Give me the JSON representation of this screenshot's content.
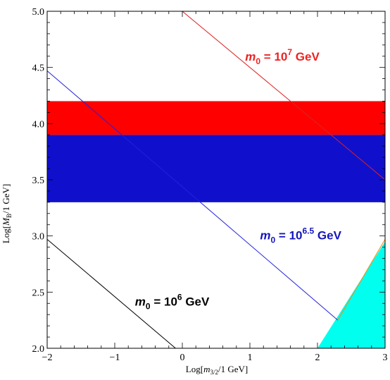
{
  "chart_data": {
    "type": "line",
    "xlabel": "Log[m3/2/1 GeV]",
    "ylabel": "Log[MB~/1 GeV]",
    "xlim": [
      -2,
      3
    ],
    "ylim": [
      2.0,
      5.0
    ],
    "x_ticks": [
      -2,
      -1,
      0,
      1,
      2,
      3
    ],
    "x_tick_labels": [
      "−2",
      "−1",
      "0",
      "1",
      "2",
      "3"
    ],
    "y_ticks": [
      2.0,
      2.5,
      3.0,
      3.5,
      4.0,
      4.5,
      5.0
    ],
    "y_tick_labels": [
      "2.0",
      "2.5",
      "3.0",
      "3.5",
      "4.0",
      "4.5",
      "5.0"
    ],
    "grid": false,
    "bands": [
      {
        "name": "red-band",
        "y_range": [
          3.9,
          4.2
        ],
        "color": "#ff0000"
      },
      {
        "name": "blue-band",
        "y_range": [
          3.3,
          3.9
        ],
        "color": "#1010cc"
      }
    ],
    "regions": [
      {
        "name": "cyan-region",
        "color": "#00ffee",
        "points": [
          [
            2.0,
            2.0
          ],
          [
            3.0,
            2.0
          ],
          [
            3.0,
            2.95
          ]
        ]
      }
    ],
    "series": [
      {
        "color": "#dd2222",
        "x": [
          0.0,
          3.0
        ],
        "y": [
          5.0,
          3.5
        ]
      },
      {
        "color": "#2222dd",
        "x": [
          -2.0,
          2.3
        ],
        "y": [
          4.47,
          2.25
        ]
      },
      {
        "color": "#000000",
        "x": [
          -2.0,
          -0.1
        ],
        "y": [
          2.97,
          2.0
        ]
      },
      {
        "color": "#ff8800",
        "x": [
          2.3,
          3.0
        ],
        "y": [
          2.25,
          2.97
        ]
      }
    ],
    "annotations": [
      {
        "label_main": "m",
        "sub": "0",
        "eq": " = 10",
        "sup": "7",
        "unit": " GeV",
        "x": 0.93,
        "y": 4.56,
        "color": "#ee2222"
      },
      {
        "label_main": "m",
        "sub": "0",
        "eq": " = 10",
        "sup": "6.5",
        "unit": " GeV",
        "x": 1.15,
        "y": 2.97,
        "color": "#1515bb"
      },
      {
        "label_main": "m",
        "sub": "0",
        "eq": " = 10",
        "sup": "6",
        "unit": " GeV",
        "x": -0.7,
        "y": 2.38,
        "color": "#000000"
      }
    ]
  }
}
